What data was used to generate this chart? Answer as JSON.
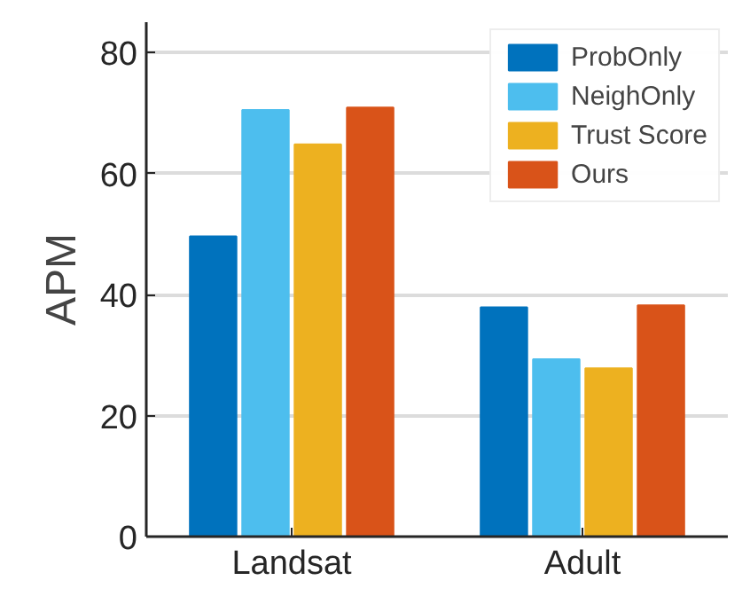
{
  "chart_data": {
    "type": "bar",
    "ylabel": "APM",
    "categories": [
      "Landsat",
      "Adult"
    ],
    "series": [
      {
        "name": "ProbOnly",
        "color": "#0072bd",
        "values": [
          49.6,
          37.9
        ]
      },
      {
        "name": "NeighOnly",
        "color": "#4dbeee",
        "values": [
          70.5,
          29.3
        ]
      },
      {
        "name": "Trust Score",
        "color": "#edb120",
        "values": [
          64.8,
          27.8
        ]
      },
      {
        "name": "Ours",
        "color": "#d95319",
        "values": [
          70.9,
          38.2
        ]
      }
    ],
    "ylim": [
      0,
      85
    ],
    "yticks": [
      0,
      20,
      40,
      60,
      80
    ],
    "grid": "y",
    "legend": "top right"
  }
}
